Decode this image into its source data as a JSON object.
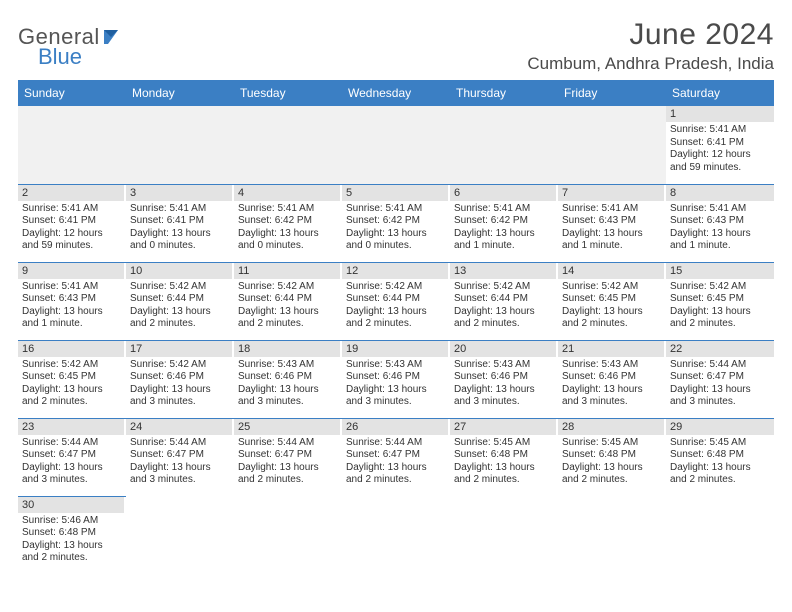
{
  "logo": {
    "text1": "General",
    "text2": "Blue"
  },
  "title": "June 2024",
  "location": "Cumbum, Andhra Pradesh, India",
  "colors": {
    "header_bg": "#3b7fc4",
    "header_text": "#ffffff",
    "daynum_bg": "#e3e3e3",
    "cell_border": "#3b7fc4",
    "text": "#333333",
    "logo_gray": "#555555",
    "logo_blue": "#3b7fc4"
  },
  "typography": {
    "title_fontsize": 30,
    "location_fontsize": 17,
    "th_fontsize": 12,
    "cell_fontsize": 10
  },
  "weekdays": [
    "Sunday",
    "Monday",
    "Tuesday",
    "Wednesday",
    "Thursday",
    "Friday",
    "Saturday"
  ],
  "calendar": {
    "type": "table",
    "columns": 7,
    "first_weekday_index": 6,
    "days": [
      {
        "n": 1,
        "sunrise": "5:41 AM",
        "sunset": "6:41 PM",
        "daylight": "12 hours and 59 minutes."
      },
      {
        "n": 2,
        "sunrise": "5:41 AM",
        "sunset": "6:41 PM",
        "daylight": "12 hours and 59 minutes."
      },
      {
        "n": 3,
        "sunrise": "5:41 AM",
        "sunset": "6:41 PM",
        "daylight": "13 hours and 0 minutes."
      },
      {
        "n": 4,
        "sunrise": "5:41 AM",
        "sunset": "6:42 PM",
        "daylight": "13 hours and 0 minutes."
      },
      {
        "n": 5,
        "sunrise": "5:41 AM",
        "sunset": "6:42 PM",
        "daylight": "13 hours and 0 minutes."
      },
      {
        "n": 6,
        "sunrise": "5:41 AM",
        "sunset": "6:42 PM",
        "daylight": "13 hours and 1 minute."
      },
      {
        "n": 7,
        "sunrise": "5:41 AM",
        "sunset": "6:43 PM",
        "daylight": "13 hours and 1 minute."
      },
      {
        "n": 8,
        "sunrise": "5:41 AM",
        "sunset": "6:43 PM",
        "daylight": "13 hours and 1 minute."
      },
      {
        "n": 9,
        "sunrise": "5:41 AM",
        "sunset": "6:43 PM",
        "daylight": "13 hours and 1 minute."
      },
      {
        "n": 10,
        "sunrise": "5:42 AM",
        "sunset": "6:44 PM",
        "daylight": "13 hours and 2 minutes."
      },
      {
        "n": 11,
        "sunrise": "5:42 AM",
        "sunset": "6:44 PM",
        "daylight": "13 hours and 2 minutes."
      },
      {
        "n": 12,
        "sunrise": "5:42 AM",
        "sunset": "6:44 PM",
        "daylight": "13 hours and 2 minutes."
      },
      {
        "n": 13,
        "sunrise": "5:42 AM",
        "sunset": "6:44 PM",
        "daylight": "13 hours and 2 minutes."
      },
      {
        "n": 14,
        "sunrise": "5:42 AM",
        "sunset": "6:45 PM",
        "daylight": "13 hours and 2 minutes."
      },
      {
        "n": 15,
        "sunrise": "5:42 AM",
        "sunset": "6:45 PM",
        "daylight": "13 hours and 2 minutes."
      },
      {
        "n": 16,
        "sunrise": "5:42 AM",
        "sunset": "6:45 PM",
        "daylight": "13 hours and 2 minutes."
      },
      {
        "n": 17,
        "sunrise": "5:42 AM",
        "sunset": "6:46 PM",
        "daylight": "13 hours and 3 minutes."
      },
      {
        "n": 18,
        "sunrise": "5:43 AM",
        "sunset": "6:46 PM",
        "daylight": "13 hours and 3 minutes."
      },
      {
        "n": 19,
        "sunrise": "5:43 AM",
        "sunset": "6:46 PM",
        "daylight": "13 hours and 3 minutes."
      },
      {
        "n": 20,
        "sunrise": "5:43 AM",
        "sunset": "6:46 PM",
        "daylight": "13 hours and 3 minutes."
      },
      {
        "n": 21,
        "sunrise": "5:43 AM",
        "sunset": "6:46 PM",
        "daylight": "13 hours and 3 minutes."
      },
      {
        "n": 22,
        "sunrise": "5:44 AM",
        "sunset": "6:47 PM",
        "daylight": "13 hours and 3 minutes."
      },
      {
        "n": 23,
        "sunrise": "5:44 AM",
        "sunset": "6:47 PM",
        "daylight": "13 hours and 3 minutes."
      },
      {
        "n": 24,
        "sunrise": "5:44 AM",
        "sunset": "6:47 PM",
        "daylight": "13 hours and 3 minutes."
      },
      {
        "n": 25,
        "sunrise": "5:44 AM",
        "sunset": "6:47 PM",
        "daylight": "13 hours and 2 minutes."
      },
      {
        "n": 26,
        "sunrise": "5:44 AM",
        "sunset": "6:47 PM",
        "daylight": "13 hours and 2 minutes."
      },
      {
        "n": 27,
        "sunrise": "5:45 AM",
        "sunset": "6:48 PM",
        "daylight": "13 hours and 2 minutes."
      },
      {
        "n": 28,
        "sunrise": "5:45 AM",
        "sunset": "6:48 PM",
        "daylight": "13 hours and 2 minutes."
      },
      {
        "n": 29,
        "sunrise": "5:45 AM",
        "sunset": "6:48 PM",
        "daylight": "13 hours and 2 minutes."
      },
      {
        "n": 30,
        "sunrise": "5:46 AM",
        "sunset": "6:48 PM",
        "daylight": "13 hours and 2 minutes."
      }
    ]
  },
  "labels": {
    "sunrise_prefix": "Sunrise: ",
    "sunset_prefix": "Sunset: ",
    "daylight_prefix": "Daylight: "
  }
}
